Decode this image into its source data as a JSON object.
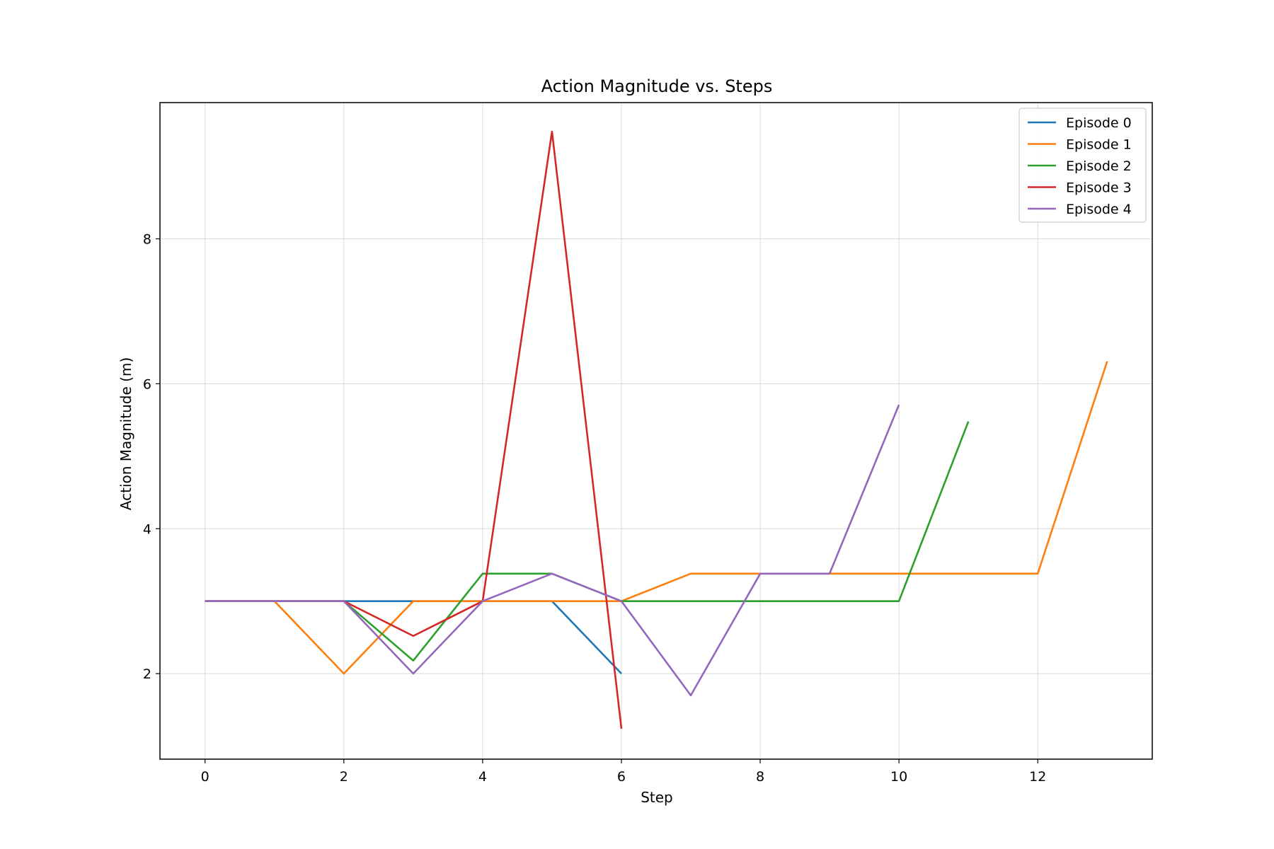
{
  "chart_data": {
    "type": "line",
    "title": "Action Magnitude vs. Steps",
    "xlabel": "Step",
    "ylabel": "Action Magnitude (m)",
    "xlim": [
      -0.65,
      13.65
    ],
    "ylim": [
      0.82,
      9.88
    ],
    "xticks": [
      0,
      2,
      4,
      6,
      8,
      10,
      12
    ],
    "yticks": [
      2,
      4,
      6,
      8
    ],
    "grid": true,
    "legend_position": "top-right",
    "series": [
      {
        "name": "Episode 0",
        "color": "#1f77b4",
        "x": [
          0,
          1,
          2,
          3,
          4,
          5,
          6
        ],
        "y": [
          3.0,
          3.0,
          3.0,
          3.0,
          3.0,
          3.0,
          2.0
        ]
      },
      {
        "name": "Episode 1",
        "color": "#ff7f0e",
        "x": [
          0,
          1,
          2,
          3,
          4,
          5,
          6,
          7,
          8,
          9,
          10,
          11,
          12,
          13
        ],
        "y": [
          3.0,
          3.0,
          2.0,
          3.0,
          3.0,
          3.0,
          3.0,
          3.38,
          3.38,
          3.38,
          3.38,
          3.38,
          3.38,
          6.31
        ]
      },
      {
        "name": "Episode 2",
        "color": "#2ca02c",
        "x": [
          0,
          1,
          2,
          3,
          4,
          5,
          6,
          7,
          8,
          9,
          10,
          11
        ],
        "y": [
          3.0,
          3.0,
          3.0,
          2.18,
          3.38,
          3.38,
          3.0,
          3.0,
          3.0,
          3.0,
          3.0,
          5.48
        ]
      },
      {
        "name": "Episode 3",
        "color": "#d62728",
        "x": [
          0,
          1,
          2,
          3,
          4,
          5,
          6
        ],
        "y": [
          3.0,
          3.0,
          3.0,
          2.52,
          3.0,
          9.48,
          1.24
        ]
      },
      {
        "name": "Episode 4",
        "color": "#9467bd",
        "x": [
          0,
          1,
          2,
          3,
          4,
          5,
          6,
          7,
          8,
          9,
          10
        ],
        "y": [
          3.0,
          3.0,
          3.0,
          2.0,
          3.0,
          3.38,
          3.0,
          1.7,
          3.38,
          3.38,
          5.71
        ]
      }
    ]
  }
}
